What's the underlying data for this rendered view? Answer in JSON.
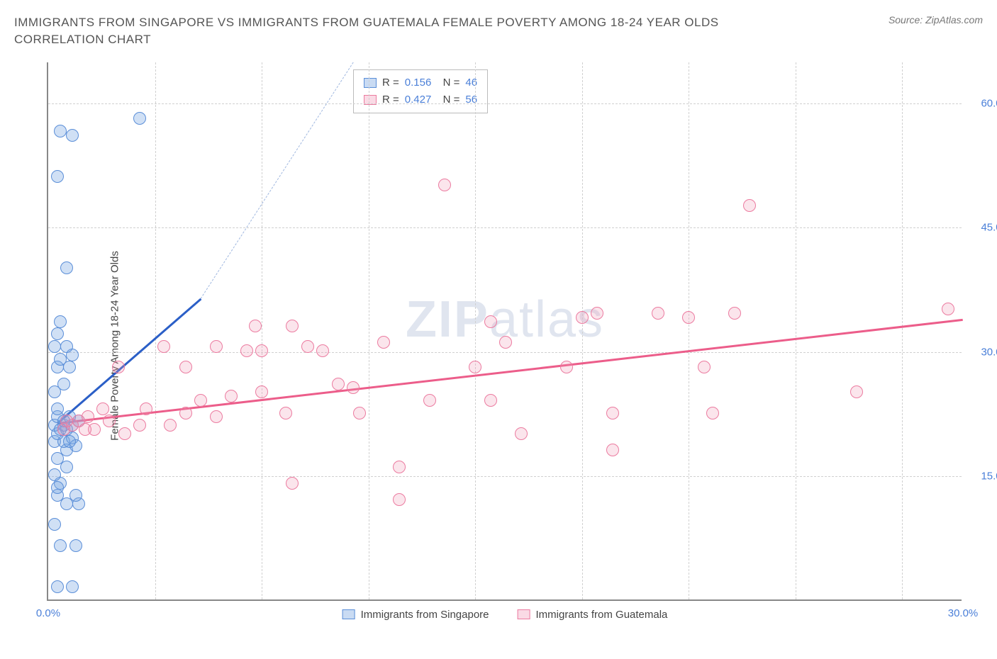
{
  "title": "IMMIGRANTS FROM SINGAPORE VS IMMIGRANTS FROM GUATEMALA FEMALE POVERTY AMONG 18-24 YEAR OLDS CORRELATION CHART",
  "source": "Source: ZipAtlas.com",
  "yaxis_label": "Female Poverty Among 18-24 Year Olds",
  "watermark_bold": "ZIP",
  "watermark_light": "atlas",
  "chart": {
    "type": "scatter",
    "xlim": [
      0,
      30
    ],
    "ylim": [
      0,
      65
    ],
    "xticks": [
      0,
      30
    ],
    "xtick_labels": [
      "0.0%",
      "30.0%"
    ],
    "yticks": [
      15,
      30,
      45,
      60
    ],
    "ytick_labels": [
      "15.0%",
      "30.0%",
      "45.0%",
      "60.0%"
    ],
    "x_gridlines": [
      3.5,
      7,
      10.5,
      14,
      17.5,
      21,
      24.5,
      28
    ],
    "background_color": "#ffffff",
    "grid_color": "#d0d0d0",
    "axis_color": "#888888",
    "tick_label_color": "#4a7fd8",
    "series": [
      {
        "name": "Immigrants from Singapore",
        "color_fill": "rgba(120,165,225,0.35)",
        "color_stroke": "#5a8ed8",
        "trend_color": "#2b5fc7",
        "R": "0.156",
        "N": "46",
        "trend": {
          "x1": 0.3,
          "y1": 21.5,
          "x2": 5.0,
          "y2": 36.5,
          "dash_to_x": 10.0,
          "dash_to_y": 65
        },
        "points": [
          [
            0.3,
            1.5
          ],
          [
            0.8,
            1.5
          ],
          [
            0.4,
            6.5
          ],
          [
            0.9,
            6.5
          ],
          [
            0.2,
            9
          ],
          [
            0.6,
            11.5
          ],
          [
            1.0,
            11.5
          ],
          [
            0.3,
            12.5
          ],
          [
            0.9,
            12.5
          ],
          [
            0.4,
            14
          ],
          [
            0.2,
            15
          ],
          [
            0.3,
            17
          ],
          [
            0.6,
            18
          ],
          [
            0.2,
            19
          ],
          [
            0.5,
            19
          ],
          [
            0.8,
            19.5
          ],
          [
            0.3,
            20
          ],
          [
            0.6,
            20.5
          ],
          [
            0.2,
            21
          ],
          [
            0.5,
            21
          ],
          [
            0.8,
            21
          ],
          [
            1.0,
            21.5
          ],
          [
            0.3,
            22
          ],
          [
            0.7,
            22
          ],
          [
            0.3,
            23
          ],
          [
            0.2,
            25
          ],
          [
            0.5,
            26
          ],
          [
            0.3,
            28
          ],
          [
            0.7,
            28
          ],
          [
            0.4,
            29
          ],
          [
            0.8,
            29.5
          ],
          [
            0.2,
            30.5
          ],
          [
            0.6,
            30.5
          ],
          [
            0.3,
            32
          ],
          [
            0.4,
            33.5
          ],
          [
            0.6,
            40
          ],
          [
            0.3,
            51
          ],
          [
            0.8,
            56
          ],
          [
            0.4,
            56.5
          ],
          [
            3.0,
            58
          ],
          [
            0.5,
            21.5
          ],
          [
            0.9,
            18.5
          ],
          [
            0.4,
            20.5
          ],
          [
            0.7,
            19
          ],
          [
            0.3,
            13.5
          ],
          [
            0.6,
            16
          ]
        ]
      },
      {
        "name": "Immigrants from Guatemala",
        "color_fill": "rgba(240,150,180,0.25)",
        "color_stroke": "#ec7ba0",
        "trend_color": "#ec5d8a",
        "R": "0.427",
        "N": "56",
        "trend": {
          "x1": 0.3,
          "y1": 21.5,
          "x2": 30,
          "y2": 34
        },
        "points": [
          [
            0.5,
            20.5
          ],
          [
            0.8,
            21
          ],
          [
            1.0,
            21.5
          ],
          [
            1.3,
            22
          ],
          [
            1.5,
            20.5
          ],
          [
            2.0,
            21.5
          ],
          [
            2.5,
            20
          ],
          [
            3.0,
            21
          ],
          [
            1.8,
            23
          ],
          [
            2.3,
            28
          ],
          [
            4.5,
            28
          ],
          [
            7.0,
            25
          ],
          [
            4.5,
            22.5
          ],
          [
            5.0,
            24
          ],
          [
            5.5,
            22
          ],
          [
            6.0,
            24.5
          ],
          [
            6.5,
            30
          ],
          [
            7.0,
            30
          ],
          [
            3.8,
            30.5
          ],
          [
            7.8,
            22.5
          ],
          [
            8.0,
            33
          ],
          [
            8.5,
            30.5
          ],
          [
            9.0,
            30
          ],
          [
            9.5,
            26
          ],
          [
            10.0,
            25.5
          ],
          [
            10.2,
            22.5
          ],
          [
            11.0,
            31
          ],
          [
            11.5,
            16
          ],
          [
            8.0,
            14
          ],
          [
            11.5,
            12
          ],
          [
            12.5,
            24
          ],
          [
            13.0,
            50
          ],
          [
            14.0,
            28
          ],
          [
            14.5,
            24
          ],
          [
            15.0,
            31
          ],
          [
            14.5,
            33.5
          ],
          [
            15.5,
            20
          ],
          [
            17.0,
            28
          ],
          [
            17.5,
            34
          ],
          [
            18.0,
            34.5
          ],
          [
            18.5,
            22.5
          ],
          [
            18.5,
            18
          ],
          [
            20.0,
            34.5
          ],
          [
            21.0,
            34
          ],
          [
            21.8,
            22.5
          ],
          [
            21.5,
            28
          ],
          [
            22.5,
            34.5
          ],
          [
            23.0,
            47.5
          ],
          [
            26.5,
            25
          ],
          [
            29.5,
            35
          ],
          [
            5.5,
            30.5
          ],
          [
            6.8,
            33
          ],
          [
            1.2,
            20.5
          ],
          [
            0.6,
            21.5
          ],
          [
            3.2,
            23
          ],
          [
            4.0,
            21
          ]
        ]
      }
    ]
  },
  "legend_bottom": [
    {
      "swatch": "blue",
      "label": "Immigrants from Singapore"
    },
    {
      "swatch": "pink",
      "label": "Immigrants from Guatemala"
    }
  ]
}
